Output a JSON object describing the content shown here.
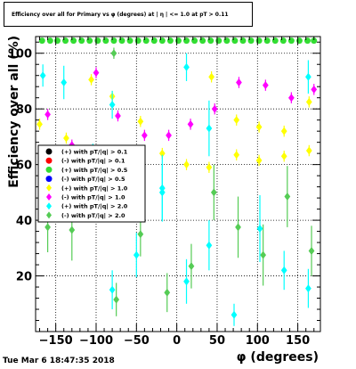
{
  "window": {
    "timestamp": "Tue Mar  6 18:47:35 2018"
  },
  "chart_data": {
    "type": "scatter",
    "title": "Efficiency over all for Primary vs φ (degrees) at | η | <= 1.0 at pT > 0.11",
    "xlabel": "φ (degrees)",
    "ylabel": "Efficiency over all (%)",
    "xlim": [
      -175,
      178
    ],
    "ylim": [
      0,
      106
    ],
    "xticks": [
      -150,
      -100,
      -50,
      0,
      50,
      100,
      150
    ],
    "yticks": [
      20,
      40,
      60,
      80,
      100
    ],
    "grid": true,
    "legend_position": "middle-left",
    "series": [
      {
        "name": "(+) with pT/|q| > 0.1",
        "color": "#000000",
        "marker": "circle",
        "points": []
      },
      {
        "name": "(-) with pT/|q| > 0.1",
        "color": "#ff0000",
        "marker": "circle",
        "points": []
      },
      {
        "name": "(+) with pT/|q| > 0.5",
        "color": "#33dd33",
        "marker": "circle",
        "points": [
          {
            "x": -167,
            "y": 104.5
          },
          {
            "x": -157,
            "y": 104.5
          },
          {
            "x": -148,
            "y": 104.5
          },
          {
            "x": -138,
            "y": 104.5
          },
          {
            "x": -128,
            "y": 104.5
          },
          {
            "x": -118,
            "y": 104.5
          },
          {
            "x": -108,
            "y": 104.5
          },
          {
            "x": -98,
            "y": 104.5
          },
          {
            "x": -88,
            "y": 104.5
          },
          {
            "x": -78,
            "y": 104.5
          },
          {
            "x": -68,
            "y": 104.5
          },
          {
            "x": -58,
            "y": 104.5
          },
          {
            "x": -48,
            "y": 104.5
          },
          {
            "x": -38,
            "y": 104.5
          },
          {
            "x": -28,
            "y": 104.5
          },
          {
            "x": -18,
            "y": 104.5
          },
          {
            "x": -8,
            "y": 104.5
          },
          {
            "x": 2,
            "y": 104.5
          },
          {
            "x": 12,
            "y": 104.5
          },
          {
            "x": 22,
            "y": 104.5
          },
          {
            "x": 32,
            "y": 104.5
          },
          {
            "x": 42,
            "y": 104.5
          },
          {
            "x": 52,
            "y": 104.5
          },
          {
            "x": 62,
            "y": 104.5
          },
          {
            "x": 72,
            "y": 104.5
          },
          {
            "x": 82,
            "y": 104.5
          },
          {
            "x": 92,
            "y": 104.5
          },
          {
            "x": 102,
            "y": 104.5
          },
          {
            "x": 112,
            "y": 104.5
          },
          {
            "x": 122,
            "y": 104.5
          },
          {
            "x": 132,
            "y": 104.5
          },
          {
            "x": 142,
            "y": 104.5
          },
          {
            "x": 152,
            "y": 104.5
          },
          {
            "x": 162,
            "y": 104.5
          },
          {
            "x": 170,
            "y": 104.5
          }
        ]
      },
      {
        "name": "(-) with pT/|q| > 0.5",
        "color": "#0000ff",
        "marker": "circle",
        "points": []
      },
      {
        "name": "(+) with pT/|q| > 1.0",
        "color": "#ffff00",
        "marker": "diamond",
        "points": [
          {
            "x": -170,
            "y": 74.5,
            "err": 2
          },
          {
            "x": -137,
            "y": 69.5,
            "err": 2
          },
          {
            "x": -106,
            "y": 90.5,
            "err": 2
          },
          {
            "x": -80,
            "y": 84.5,
            "err": 2
          },
          {
            "x": -45,
            "y": 75.5,
            "err": 2
          },
          {
            "x": -18,
            "y": 64,
            "err": 2
          },
          {
            "x": 12,
            "y": 60,
            "err": 2
          },
          {
            "x": 40,
            "y": 59,
            "err": 2
          },
          {
            "x": 43,
            "y": 91.5,
            "err": 2
          },
          {
            "x": 74,
            "y": 76,
            "err": 2
          },
          {
            "x": 74,
            "y": 63.5,
            "err": 2
          },
          {
            "x": 102,
            "y": 61.5,
            "err": 2
          },
          {
            "x": 102,
            "y": 73.5,
            "err": 2
          },
          {
            "x": 133,
            "y": 72,
            "err": 2
          },
          {
            "x": 133,
            "y": 63,
            "err": 2
          },
          {
            "x": 164,
            "y": 82.5,
            "err": 2
          },
          {
            "x": 164,
            "y": 65,
            "err": 2
          }
        ]
      },
      {
        "name": "(-) with pT/|q| > 1.0",
        "color": "#ff00ff",
        "marker": "diamond",
        "points": [
          {
            "x": -160,
            "y": 78,
            "err": 2
          },
          {
            "x": -130,
            "y": 67,
            "err": 2
          },
          {
            "x": -100,
            "y": 93,
            "err": 2
          },
          {
            "x": -73,
            "y": 77.5,
            "err": 2
          },
          {
            "x": -40,
            "y": 70.5,
            "err": 2
          },
          {
            "x": -10,
            "y": 70.5,
            "err": 2
          },
          {
            "x": 17,
            "y": 74.5,
            "err": 2
          },
          {
            "x": 47,
            "y": 80,
            "err": 2
          },
          {
            "x": 77,
            "y": 89.5,
            "err": 2
          },
          {
            "x": 110,
            "y": 88.5,
            "err": 2
          },
          {
            "x": 142,
            "y": 84,
            "err": 2
          },
          {
            "x": 170,
            "y": 87,
            "err": 2
          }
        ]
      },
      {
        "name": "(+) with pT/|q| > 2.0",
        "color": "#00ffff",
        "marker": "diamond",
        "points": [
          {
            "x": -166,
            "y": 92,
            "err": 4
          },
          {
            "x": -140,
            "y": 89.5,
            "err": 6
          },
          {
            "x": -104,
            "y": 58.5,
            "err": 9
          },
          {
            "x": -80,
            "y": 81.5,
            "err": 5
          },
          {
            "x": -80,
            "y": 15,
            "err": 7
          },
          {
            "x": -50,
            "y": 27.5,
            "err": 8
          },
          {
            "x": -18,
            "y": 50,
            "err": 10
          },
          {
            "x": -18,
            "y": 51.5,
            "err": 12
          },
          {
            "x": 12,
            "y": 95,
            "err": 5
          },
          {
            "x": 12,
            "y": 18,
            "err": 8
          },
          {
            "x": 40,
            "y": 73,
            "err": 10
          },
          {
            "x": 40,
            "y": 31,
            "err": 9
          },
          {
            "x": 71,
            "y": 6,
            "err": 4
          },
          {
            "x": 103,
            "y": 37,
            "err": 12
          },
          {
            "x": 133,
            "y": 22,
            "err": 7
          },
          {
            "x": 163,
            "y": 91.5,
            "err": 6
          },
          {
            "x": 163,
            "y": 15.5,
            "err": 7
          }
        ]
      },
      {
        "name": "(-) with pT/|q| > 2.0",
        "color": "#55cc55",
        "marker": "diamond",
        "points": [
          {
            "x": -160,
            "y": 37.5,
            "err": 9
          },
          {
            "x": -130,
            "y": 36.5,
            "err": 11
          },
          {
            "x": -100,
            "y": 55.5,
            "err": 7
          },
          {
            "x": -78,
            "y": 100,
            "err": 2
          },
          {
            "x": -75,
            "y": 11.5,
            "err": 6
          },
          {
            "x": -45,
            "y": 35,
            "err": 8
          },
          {
            "x": -12,
            "y": 14,
            "err": 7
          },
          {
            "x": 18,
            "y": 23.5,
            "err": 8
          },
          {
            "x": 46,
            "y": 50,
            "err": 10
          },
          {
            "x": 76,
            "y": 37.5,
            "err": 11
          },
          {
            "x": 107,
            "y": 27.5,
            "err": 11
          },
          {
            "x": 137,
            "y": 48.5,
            "err": 11
          },
          {
            "x": 167,
            "y": 29,
            "err": 9
          }
        ]
      }
    ]
  }
}
